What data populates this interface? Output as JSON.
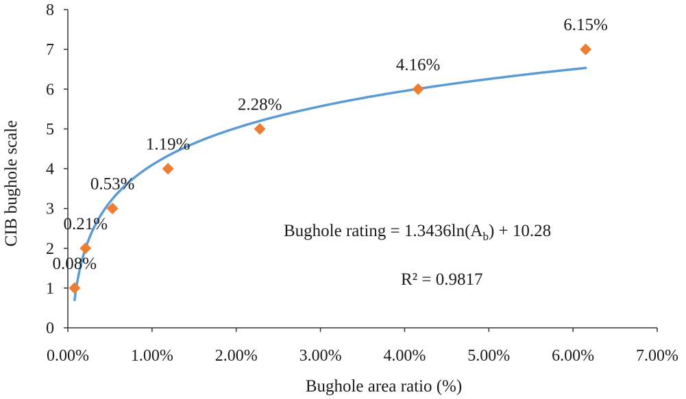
{
  "chart_data": {
    "type": "scatter",
    "title": "",
    "xlabel": "Bughole area ratio (%)",
    "ylabel": "CIB bughole scale",
    "xlim": [
      0,
      7
    ],
    "ylim": [
      0,
      8
    ],
    "x_ticks": [
      0,
      1,
      2,
      3,
      4,
      5,
      6,
      7
    ],
    "x_tick_labels": [
      "0.00%",
      "1.00%",
      "2.00%",
      "3.00%",
      "4.00%",
      "5.00%",
      "6.00%",
      "7.00%"
    ],
    "y_ticks": [
      0,
      1,
      2,
      3,
      4,
      5,
      6,
      7,
      8
    ],
    "y_tick_labels": [
      "0",
      "1",
      "2",
      "3",
      "4",
      "5",
      "6",
      "7",
      "8"
    ],
    "grid": false,
    "legend": "none",
    "series": [
      {
        "marker": "diamond",
        "color": "#ED7D31",
        "points": [
          {
            "x": 0.08,
            "y": 1,
            "label": "0.08%"
          },
          {
            "x": 0.21,
            "y": 2,
            "label": "0.21%"
          },
          {
            "x": 0.53,
            "y": 3,
            "label": "0.53%"
          },
          {
            "x": 1.19,
            "y": 4,
            "label": "1.19%"
          },
          {
            "x": 2.28,
            "y": 5,
            "label": "2.28%"
          },
          {
            "x": 4.16,
            "y": 6,
            "label": "4.16%"
          },
          {
            "x": 6.15,
            "y": 7,
            "label": "6.15%"
          }
        ]
      }
    ],
    "trendline": {
      "type": "logarithmic",
      "a": 1.3436,
      "b": 10.28,
      "x_range": [
        0.08,
        6.15
      ],
      "color": "#5B9BD5",
      "equation_prefix": "Bughole rating = 1.3436ln(A",
      "equation_subscript": "b",
      "equation_suffix": ") + 10.28",
      "r_squared": "R² = 0.9817"
    }
  }
}
